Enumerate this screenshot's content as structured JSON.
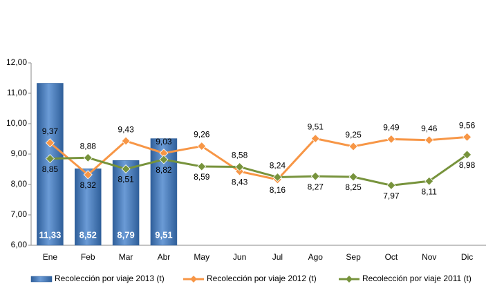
{
  "chart_data": {
    "type": "bar_line",
    "categories": [
      "Ene",
      "Feb",
      "Mar",
      "Abr",
      "May",
      "Jun",
      "Jul",
      "Ago",
      "Sep",
      "Oct",
      "Nov",
      "Dic"
    ],
    "series": [
      {
        "name": "Recolección por viaje 2013 (t)",
        "type": "bar",
        "color": "#4f81bd",
        "values": [
          11.33,
          8.52,
          8.79,
          9.51,
          null,
          null,
          null,
          null,
          null,
          null,
          null,
          null
        ],
        "value_labels": [
          "11,33",
          "8,52",
          "8,79",
          "9,51",
          null,
          null,
          null,
          null,
          null,
          null,
          null,
          null
        ]
      },
      {
        "name": "Recolección por viaje 2012 (t)",
        "type": "line",
        "color": "#f79646",
        "values": [
          9.37,
          8.32,
          9.43,
          9.03,
          9.26,
          8.43,
          8.16,
          9.51,
          9.25,
          9.49,
          9.46,
          9.56
        ],
        "value_labels": [
          "9,37",
          "8,32",
          "9,43",
          "9,03",
          "9,26",
          "8,43",
          "8,16",
          "9,51",
          "9,25",
          "9,49",
          "9,46",
          "9,56"
        ]
      },
      {
        "name": "Recolección por viaje 2011 (t)",
        "type": "line",
        "color": "#77933c",
        "values": [
          8.85,
          8.88,
          8.51,
          8.82,
          8.59,
          8.58,
          8.24,
          8.27,
          8.25,
          7.97,
          8.11,
          8.98
        ],
        "value_labels": [
          "8,85",
          "8,88",
          "8,51",
          "8,82",
          "8,59",
          "8,58",
          "8,24",
          "8,27",
          "8,25",
          "7,97",
          "8,11",
          "8,98"
        ]
      }
    ],
    "ylim": [
      6,
      12
    ],
    "yticks": [
      {
        "value": 6,
        "label": "6,00"
      },
      {
        "value": 7,
        "label": "7,00"
      },
      {
        "value": 8,
        "label": "8,00"
      },
      {
        "value": 9,
        "label": "9,00"
      },
      {
        "value": 10,
        "label": "10,00"
      },
      {
        "value": 11,
        "label": "11,00"
      },
      {
        "value": 12,
        "label": "12,00"
      }
    ],
    "grid": false,
    "legend": "bottom"
  }
}
